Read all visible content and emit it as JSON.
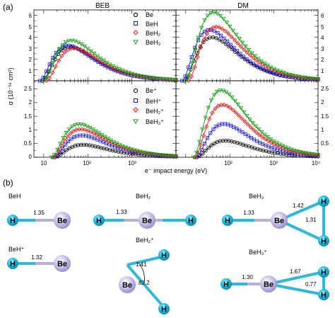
{
  "panel_a": {
    "label": "(a)",
    "titles": [
      "BEB",
      "DM"
    ],
    "ylabel": "σ (10⁻¹⁶ cm²)",
    "xlabel": "e⁻ impact energy (eV)",
    "xticks": [
      "10",
      "10²",
      "10³",
      "10⁴"
    ],
    "yticks_top": [
      "1",
      "2",
      "3",
      "4",
      "5",
      "6"
    ],
    "yticks_bottom": [
      "0",
      "0.5",
      "1",
      "1.5",
      "2",
      "2.5"
    ],
    "legend_neutral": [
      "Be",
      "BeH",
      "BeH₂",
      "BeH₃"
    ],
    "legend_ion": [
      "Be⁺",
      "BeH⁺",
      "BeH₂⁺",
      "BeH₃⁺"
    ]
  },
  "panel_b": {
    "label": "(b)",
    "mol": [
      {
        "title": "BeH",
        "b1": "1.35"
      },
      {
        "title": "BeH₂",
        "b1": "1.33"
      },
      {
        "title": "BeH₃",
        "b1": "1.33",
        "b2": "1.42",
        "b3": "1.31"
      },
      {
        "title": "BeH⁺",
        "b1": "1.32"
      },
      {
        "title": "BeH₂⁺",
        "b1": "1.41",
        "ang": "82.2"
      },
      {
        "title": "BeH₃⁺",
        "b1": "1.30",
        "b2": "1.67",
        "b3": "0.77"
      }
    ],
    "atom_H": "H",
    "atom_Be": "Be"
  },
  "colors": {
    "Be": "#000000",
    "BeH": "#1a1ae6",
    "BeH2": "#e61a1a",
    "BeH3": "#12a312",
    "bond": "#30b8d8",
    "H_atom": "#1ec4e8",
    "Be_atom": "#c2bfe6"
  },
  "chart_data": {
    "type": "line",
    "xscale": "log",
    "xlim": [
      6,
      10000
    ],
    "xlabel": "e⁻ impact energy (eV)",
    "ylabel": "σ (10⁻¹⁶ cm²)",
    "series_names": [
      "Be",
      "BeH",
      "BeH₂",
      "BeH₃",
      "Be⁺",
      "BeH⁺",
      "BeH₂⁺",
      "BeH₃⁺"
    ],
    "panels": [
      {
        "title": "BEB",
        "ylim": [
          0,
          6.5
        ],
        "series": [
          {
            "name": "Be",
            "threshold": 9.3,
            "peak_x": 45,
            "peak_y": 3.1
          },
          {
            "name": "BeH",
            "threshold": 8.2,
            "peak_x": 52,
            "peak_y": 3.05
          },
          {
            "name": "BeH₂",
            "threshold": 11.5,
            "peak_x": 58,
            "peak_y": 2.95
          },
          {
            "name": "BeH₃",
            "threshold": 10,
            "peak_x": 55,
            "peak_y": 3.6
          }
        ]
      },
      {
        "title": "DM",
        "ylim": [
          0,
          6.5
        ],
        "series": [
          {
            "name": "Be",
            "threshold": 9.3,
            "peak_x": 32,
            "peak_y": 3.9
          },
          {
            "name": "BeH",
            "threshold": 8.2,
            "peak_x": 42,
            "peak_y": 4.6
          },
          {
            "name": "BeH₂",
            "threshold": 11.5,
            "peak_x": 50,
            "peak_y": 4.95
          },
          {
            "name": "BeH₃",
            "threshold": 10,
            "peak_x": 55,
            "peak_y": 6.1
          }
        ]
      },
      {
        "title": "",
        "ylim": [
          0,
          2.8
        ],
        "series": [
          {
            "name": "Be⁺",
            "threshold": 18,
            "peak_x": 65,
            "peak_y": 0.45
          },
          {
            "name": "BeH⁺",
            "threshold": 17,
            "peak_x": 75,
            "peak_y": 0.8
          },
          {
            "name": "BeH₂⁺",
            "threshold": 16,
            "peak_x": 75,
            "peak_y": 1.02
          },
          {
            "name": "BeH₃⁺",
            "threshold": 15,
            "peak_x": 72,
            "peak_y": 1.2
          }
        ]
      },
      {
        "title": "",
        "ylim": [
          0,
          2.8
        ],
        "series": [
          {
            "name": "Be⁺",
            "threshold": 18,
            "peak_x": 65,
            "peak_y": 0.6
          },
          {
            "name": "BeH⁺",
            "threshold": 17,
            "peak_x": 70,
            "peak_y": 1.22
          },
          {
            "name": "BeH₂⁺",
            "threshold": 16,
            "peak_x": 68,
            "peak_y": 1.92
          },
          {
            "name": "BeH₃⁺",
            "threshold": 15,
            "peak_x": 65,
            "peak_y": 2.45
          }
        ]
      }
    ]
  }
}
